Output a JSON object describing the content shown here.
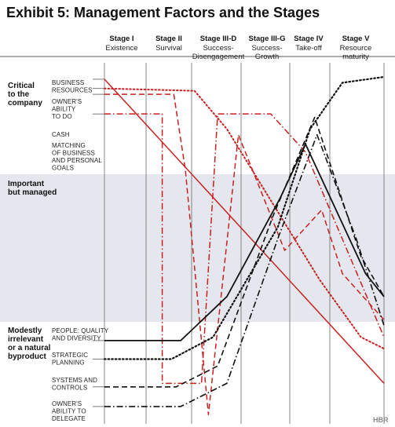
{
  "colors": {
    "red": "#cc1f1f",
    "black": "#111111",
    "band": "#e4e8ee",
    "divider": "#555555"
  },
  "chart_data": {
    "type": "line",
    "title": "Exhibit 5: Management Factors and the Stages",
    "brand": "HBR",
    "x": [
      0,
      1,
      2,
      3,
      4,
      5
    ],
    "categories": [
      {
        "name": "Stage I",
        "sub": [
          "Existence"
        ]
      },
      {
        "name": "Stage II",
        "sub": [
          "Survival"
        ]
      },
      {
        "name": "Stage III-D",
        "sub": [
          "Success-",
          "Disengagement"
        ]
      },
      {
        "name": "Stage III-G",
        "sub": [
          "Success-",
          "Growth"
        ]
      },
      {
        "name": "Stage IV",
        "sub": [
          "Take-off"
        ]
      },
      {
        "name": "Stage V",
        "sub": [
          "Resource",
          "maturity"
        ]
      }
    ],
    "y_bands": [
      {
        "lines": [
          "Critical",
          "to the",
          "company"
        ],
        "range": [
          2,
          3
        ]
      },
      {
        "lines": [
          "Important",
          "but managed"
        ],
        "range": [
          1,
          2
        ]
      },
      {
        "lines": [
          "Modestly",
          "irrelevant",
          "or a natural",
          "byproduct"
        ],
        "range": [
          0,
          1
        ]
      }
    ],
    "ylim": [
      0,
      3
    ],
    "xlim": [
      -0.15,
      5.9
    ],
    "series": [
      {
        "name": "BUSINESS RESOURCES",
        "label_lines": [
          "BUSINESS",
          "RESOURCES"
        ],
        "color": "red",
        "style": "solid",
        "width": 1.5,
        "points": [
          [
            -0.15,
            2.98
          ],
          [
            5.9,
            0.35
          ]
        ]
      },
      {
        "name": "OWNER'S ABILITY TO DO",
        "label_lines": [
          "OWNER'S",
          "ABILITY",
          "TO DO"
        ],
        "color": "red",
        "style": "dotted",
        "width": 2,
        "points": [
          [
            -0.15,
            2.9
          ],
          [
            1.8,
            2.88
          ],
          [
            2.5,
            2.55
          ],
          [
            3.5,
            1.9
          ],
          [
            4.5,
            1.25
          ],
          [
            5.4,
            0.75
          ],
          [
            5.9,
            0.65
          ]
        ]
      },
      {
        "name": "CASH",
        "label_lines": [
          "CASH"
        ],
        "color": "red",
        "style": "dashed",
        "width": 1.5,
        "points": [
          [
            -0.15,
            2.85
          ],
          [
            1.35,
            2.85
          ],
          [
            1.6,
            2.2
          ],
          [
            2.1,
            0.08
          ],
          [
            2.75,
            2.5
          ],
          [
            3.75,
            1.5
          ],
          [
            4.55,
            1.85
          ],
          [
            5.0,
            1.3
          ],
          [
            5.9,
            0.9
          ]
        ]
      },
      {
        "name": "MATCHING OF BUSINESS AND PERSONAL GOALS",
        "label_lines": [
          "MATCHING",
          "OF BUSINESS",
          "AND PERSONAL",
          "GOALS"
        ],
        "color": "red",
        "style": "dashdot",
        "width": 1.5,
        "points": [
          [
            -0.15,
            2.68
          ],
          [
            1.1,
            2.68
          ],
          [
            1.1,
            0.35
          ],
          [
            1.95,
            0.35
          ],
          [
            2.3,
            2.68
          ],
          [
            3.45,
            2.68
          ],
          [
            4.2,
            2.35
          ],
          [
            5.9,
            0.75
          ]
        ]
      },
      {
        "name": "PEOPLE: QUALITY AND DIVERSITY",
        "label_lines": [
          "PEOPLE: QUALITY",
          "AND DIVERSITY"
        ],
        "color": "black",
        "style": "solid",
        "width": 1.8,
        "points": [
          [
            -0.15,
            0.72
          ],
          [
            1.5,
            0.72
          ],
          [
            2.5,
            1.1
          ],
          [
            3.65,
            1.95
          ],
          [
            4.2,
            2.42
          ],
          [
            5.5,
            1.3
          ],
          [
            5.9,
            1.1
          ]
        ]
      },
      {
        "name": "STRATEGIC PLANNING",
        "label_lines": [
          "STRATEGIC",
          "PLANNING"
        ],
        "color": "black",
        "style": "dotted",
        "width": 2.2,
        "points": [
          [
            -0.15,
            0.56
          ],
          [
            1.3,
            0.56
          ],
          [
            2.2,
            0.75
          ],
          [
            3.6,
            1.7
          ],
          [
            4.3,
            2.55
          ],
          [
            5.0,
            2.95
          ],
          [
            5.9,
            3.0
          ]
        ]
      },
      {
        "name": "SYSTEMS AND CONTROLS",
        "label_lines": [
          "SYSTEMS AND",
          "CONTROLS"
        ],
        "color": "black",
        "style": "dashed",
        "width": 1.6,
        "points": [
          [
            -0.15,
            0.32
          ],
          [
            1.4,
            0.32
          ],
          [
            2.3,
            0.5
          ],
          [
            3.5,
            1.8
          ],
          [
            4.4,
            2.65
          ],
          [
            5.4,
            1.45
          ],
          [
            5.9,
            1.1
          ]
        ]
      },
      {
        "name": "OWNER'S ABILITY TO DELEGATE",
        "label_lines": [
          "OWNER'S",
          "ABILITY TO",
          "DELEGATE"
        ],
        "color": "black",
        "style": "dashdot",
        "width": 1.6,
        "points": [
          [
            -0.15,
            0.15
          ],
          [
            1.5,
            0.15
          ],
          [
            2.5,
            0.35
          ],
          [
            3.6,
            1.6
          ],
          [
            4.45,
            2.5
          ],
          [
            5.3,
            1.6
          ],
          [
            5.9,
            0.85
          ]
        ]
      }
    ]
  }
}
